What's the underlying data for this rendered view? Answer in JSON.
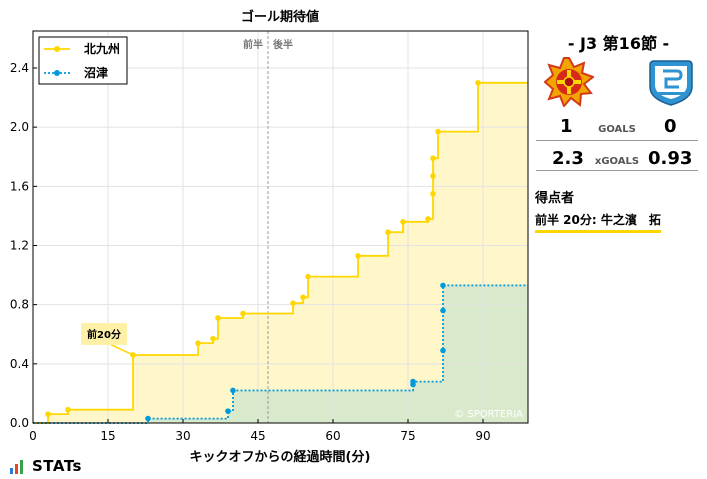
{
  "chart_data": {
    "type": "line",
    "title": "ゴール期待値",
    "xlabel": "キックオフからの経過時間(分)",
    "ylabel": "",
    "xlim": [
      0,
      99
    ],
    "ylim": [
      0,
      2.65
    ],
    "xticks": [
      0,
      15,
      30,
      45,
      60,
      75,
      90
    ],
    "yticks": [
      0.0,
      0.4,
      0.8,
      1.2,
      1.6,
      2.0,
      2.4
    ],
    "tick_labels_y": [
      "0.0",
      "0.4",
      "0.8",
      "1.2",
      "1.6",
      "2.0",
      "2.4"
    ],
    "grid": true,
    "legend": "top-left",
    "half_marker": {
      "x": 47,
      "left_label": "前半",
      "right_label": "後半"
    },
    "watermark": "© SPORTERIA",
    "series": [
      {
        "name": "北九州",
        "color": "#ffd700",
        "fill": "#fff5c4",
        "style": "solid",
        "shots": [
          {
            "x": 3,
            "y": 0.06
          },
          {
            "x": 7,
            "y": 0.09
          },
          {
            "x": 20,
            "y": 0.46
          },
          {
            "x": 33,
            "y": 0.54
          },
          {
            "x": 36,
            "y": 0.57
          },
          {
            "x": 37,
            "y": 0.71
          },
          {
            "x": 42,
            "y": 0.74
          },
          {
            "x": 52,
            "y": 0.81
          },
          {
            "x": 54,
            "y": 0.85
          },
          {
            "x": 55,
            "y": 0.99
          },
          {
            "x": 65,
            "y": 1.13
          },
          {
            "x": 71,
            "y": 1.29
          },
          {
            "x": 74,
            "y": 1.36
          },
          {
            "x": 79,
            "y": 1.38
          },
          {
            "x": 80,
            "y": 1.55
          },
          {
            "x": 80,
            "y": 1.67
          },
          {
            "x": 80,
            "y": 1.79
          },
          {
            "x": 81,
            "y": 1.97
          },
          {
            "x": 89,
            "y": 2.3
          }
        ],
        "end": {
          "x": 99,
          "y": 2.3
        }
      },
      {
        "name": "沼津",
        "color": "#0099dd",
        "fill": "#d4e8cc",
        "style": "dotted",
        "shots": [
          {
            "x": 23,
            "y": 0.03
          },
          {
            "x": 39,
            "y": 0.08
          },
          {
            "x": 40,
            "y": 0.22
          },
          {
            "x": 76,
            "y": 0.26
          },
          {
            "x": 76,
            "y": 0.28
          },
          {
            "x": 82,
            "y": 0.49
          },
          {
            "x": 82,
            "y": 0.76
          },
          {
            "x": 82,
            "y": 0.93
          }
        ],
        "end": {
          "x": 99,
          "y": 0.93
        }
      }
    ],
    "annotations": [
      {
        "x": 20,
        "y": 0.46,
        "text": "前20分",
        "series": "北九州"
      }
    ]
  },
  "match": {
    "title": "- J3 第16節 -",
    "home": {
      "name": "北九州",
      "goals": "1",
      "xgoals": "2.3"
    },
    "away": {
      "name": "沼津",
      "goals": "0",
      "xgoals": "0.93"
    },
    "goals_label": "GOALS",
    "xgoals_label": "xGOALS",
    "scorers_heading": "得点者",
    "scorers": [
      "前半 20分: 牛之濱　拓"
    ]
  },
  "branding": {
    "logo_text": "STATs"
  }
}
